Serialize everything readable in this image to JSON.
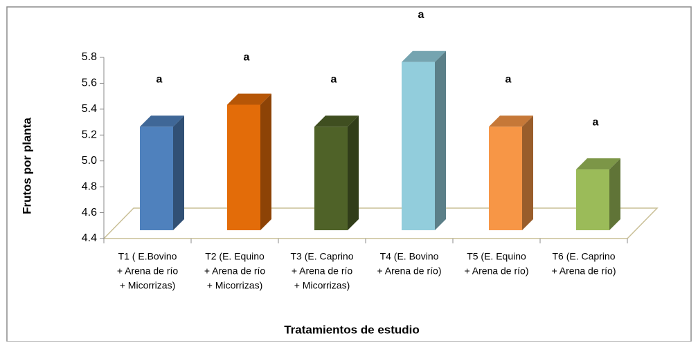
{
  "chart_data": {
    "type": "bar3d",
    "xlabel": "Tratamientos de estudio",
    "ylabel": "Frutos por planta",
    "categories": [
      [
        "T1 ( E.Bovino",
        "+ Arena de río",
        "+ Micorrizas)"
      ],
      [
        "T2 (E. Equino",
        "+ Arena de río",
        "+ Micorrizas)"
      ],
      [
        "T3 (E. Caprino",
        "+ Arena de río",
        "+ Micorrizas)"
      ],
      [
        "T4 (E. Bovino",
        "+ Arena de río)"
      ],
      [
        "T5 (E. Equino",
        "+ Arena de río)"
      ],
      [
        "T6 (E. Caprino",
        "+ Arena de río)"
      ]
    ],
    "values": [
      5.2,
      5.37,
      5.2,
      5.7,
      5.2,
      4.87
    ],
    "letters": [
      "a",
      "a",
      "a",
      "a",
      "a",
      "a"
    ],
    "colors": [
      "#4f81bd",
      "#e36c09",
      "#4f6228",
      "#92cddc",
      "#f79646",
      "#9bbb59"
    ],
    "ylim": [
      4.4,
      5.8
    ],
    "yticks": [
      4.4,
      4.6,
      4.8,
      {
        "value": 5,
        "label": "5.0"
      },
      5.2,
      5.4,
      5.6,
      5.8
    ]
  }
}
